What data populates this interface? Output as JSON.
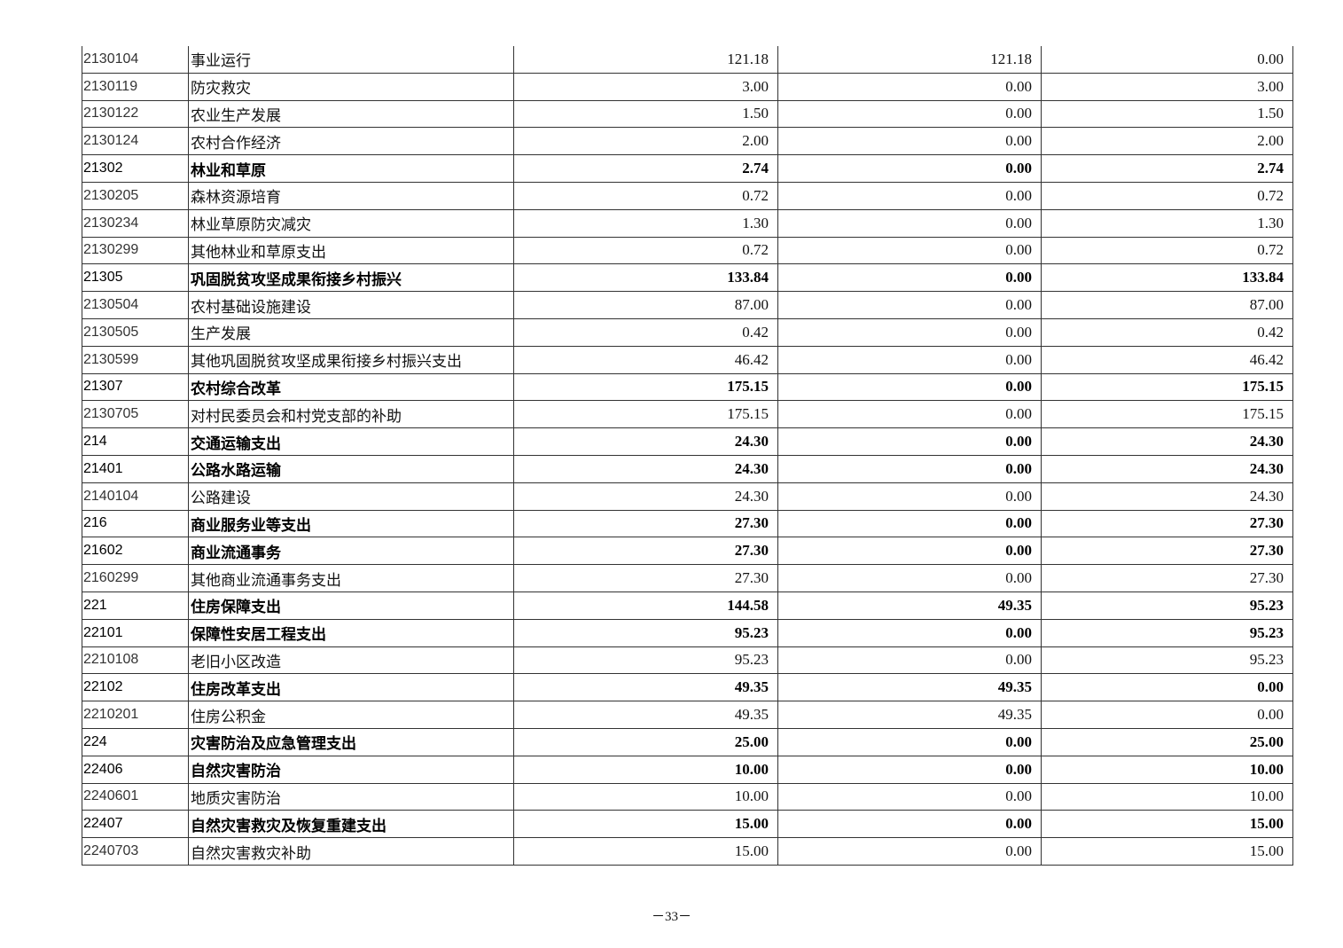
{
  "rows": [
    {
      "code": "2130104",
      "name": "事业运行",
      "total": "121.18",
      "basic": "121.18",
      "project": "0.00",
      "bold": false
    },
    {
      "code": "2130119",
      "name": "防灾救灾",
      "total": "3.00",
      "basic": "0.00",
      "project": "3.00",
      "bold": false
    },
    {
      "code": "2130122",
      "name": "农业生产发展",
      "total": "1.50",
      "basic": "0.00",
      "project": "1.50",
      "bold": false
    },
    {
      "code": "2130124",
      "name": "农村合作经济",
      "total": "2.00",
      "basic": "0.00",
      "project": "2.00",
      "bold": false
    },
    {
      "code": "21302",
      "name": "林业和草原",
      "total": "2.74",
      "basic": "0.00",
      "project": "2.74",
      "bold": true
    },
    {
      "code": "2130205",
      "name": "森林资源培育",
      "total": "0.72",
      "basic": "0.00",
      "project": "0.72",
      "bold": false
    },
    {
      "code": "2130234",
      "name": "林业草原防灾减灾",
      "total": "1.30",
      "basic": "0.00",
      "project": "1.30",
      "bold": false
    },
    {
      "code": "2130299",
      "name": "其他林业和草原支出",
      "total": "0.72",
      "basic": "0.00",
      "project": "0.72",
      "bold": false
    },
    {
      "code": "21305",
      "name": "巩固脱贫攻坚成果衔接乡村振兴",
      "total": "133.84",
      "basic": "0.00",
      "project": "133.84",
      "bold": true
    },
    {
      "code": "2130504",
      "name": "农村基础设施建设",
      "total": "87.00",
      "basic": "0.00",
      "project": "87.00",
      "bold": false
    },
    {
      "code": "2130505",
      "name": "生产发展",
      "total": "0.42",
      "basic": "0.00",
      "project": "0.42",
      "bold": false
    },
    {
      "code": "2130599",
      "name": "其他巩固脱贫攻坚成果衔接乡村振兴支出",
      "total": "46.42",
      "basic": "0.00",
      "project": "46.42",
      "bold": false
    },
    {
      "code": "21307",
      "name": "农村综合改革",
      "total": "175.15",
      "basic": "0.00",
      "project": "175.15",
      "bold": true
    },
    {
      "code": "2130705",
      "name": "对村民委员会和村党支部的补助",
      "total": "175.15",
      "basic": "0.00",
      "project": "175.15",
      "bold": false
    },
    {
      "code": "214",
      "name": "交通运输支出",
      "total": "24.30",
      "basic": "0.00",
      "project": "24.30",
      "bold": true
    },
    {
      "code": "21401",
      "name": "公路水路运输",
      "total": "24.30",
      "basic": "0.00",
      "project": "24.30",
      "bold": true
    },
    {
      "code": "2140104",
      "name": "公路建设",
      "total": "24.30",
      "basic": "0.00",
      "project": "24.30",
      "bold": false
    },
    {
      "code": "216",
      "name": "商业服务业等支出",
      "total": "27.30",
      "basic": "0.00",
      "project": "27.30",
      "bold": true
    },
    {
      "code": "21602",
      "name": "商业流通事务",
      "total": "27.30",
      "basic": "0.00",
      "project": "27.30",
      "bold": true
    },
    {
      "code": "2160299",
      "name": "其他商业流通事务支出",
      "total": "27.30",
      "basic": "0.00",
      "project": "27.30",
      "bold": false
    },
    {
      "code": "221",
      "name": "住房保障支出",
      "total": "144.58",
      "basic": "49.35",
      "project": "95.23",
      "bold": true
    },
    {
      "code": "22101",
      "name": "保障性安居工程支出",
      "total": "95.23",
      "basic": "0.00",
      "project": "95.23",
      "bold": true
    },
    {
      "code": "2210108",
      "name": "老旧小区改造",
      "total": "95.23",
      "basic": "0.00",
      "project": "95.23",
      "bold": false
    },
    {
      "code": "22102",
      "name": "住房改革支出",
      "total": "49.35",
      "basic": "49.35",
      "project": "0.00",
      "bold": true
    },
    {
      "code": "2210201",
      "name": "住房公积金",
      "total": "49.35",
      "basic": "49.35",
      "project": "0.00",
      "bold": false
    },
    {
      "code": "224",
      "name": "灾害防治及应急管理支出",
      "total": "25.00",
      "basic": "0.00",
      "project": "25.00",
      "bold": true
    },
    {
      "code": "22406",
      "name": "自然灾害防治",
      "total": "10.00",
      "basic": "0.00",
      "project": "10.00",
      "bold": true
    },
    {
      "code": "2240601",
      "name": "地质灾害防治",
      "total": "10.00",
      "basic": "0.00",
      "project": "10.00",
      "bold": false
    },
    {
      "code": "22407",
      "name": "自然灾害救灾及恢复重建支出",
      "total": "15.00",
      "basic": "0.00",
      "project": "15.00",
      "bold": true
    },
    {
      "code": "2240703",
      "name": "自然灾害救灾补助",
      "total": "15.00",
      "basic": "0.00",
      "project": "15.00",
      "bold": false
    }
  ],
  "page_number": "－33－"
}
